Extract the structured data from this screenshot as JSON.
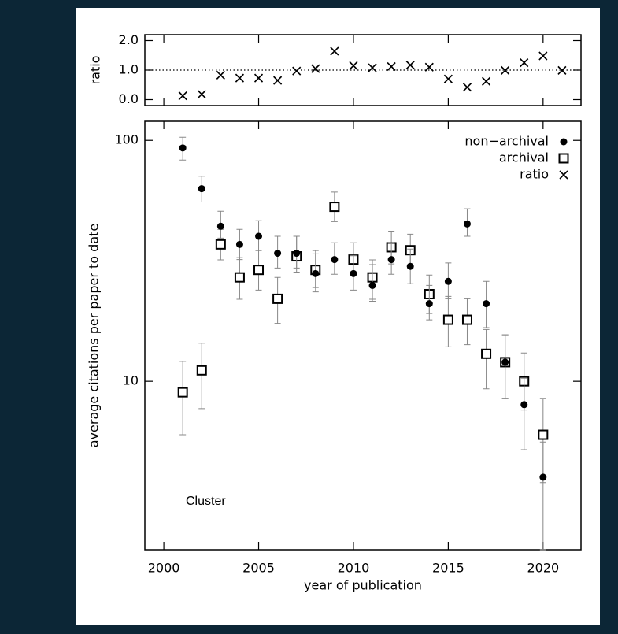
{
  "chart_data": [
    {
      "type": "scatter",
      "ylabel": "ratio",
      "x": [
        2001,
        2002,
        2003,
        2004,
        2005,
        2006,
        2007,
        2008,
        2009,
        2010,
        2011,
        2012,
        2013,
        2014,
        2015,
        2016,
        2017,
        2018,
        2019,
        2020,
        2021
      ],
      "series": [
        {
          "name": "ratio",
          "color": "#000000",
          "marker": "x",
          "values": [
            0.13,
            0.18,
            0.83,
            0.73,
            0.73,
            0.65,
            0.97,
            1.05,
            1.64,
            1.15,
            1.08,
            1.12,
            1.17,
            1.1,
            0.7,
            0.42,
            0.62,
            0.99,
            1.25,
            1.48,
            0.99
          ]
        }
      ],
      "xlim": [
        1999,
        2022
      ],
      "xticks": [
        2000,
        2005,
        2010,
        2015,
        2020
      ],
      "ylim": [
        -0.2,
        2.2
      ],
      "yticks": [
        {
          "value": 0,
          "label": "0.0"
        },
        {
          "value": 1,
          "label": "1.0"
        },
        {
          "value": 2,
          "label": "2.0"
        }
      ],
      "ref_line": 1
    },
    {
      "type": "scatter",
      "xlabel": "year of publication",
      "ylabel": "average citations per paper to date",
      "annotation": "Cluster",
      "x": [
        2001,
        2002,
        2003,
        2004,
        2005,
        2006,
        2007,
        2008,
        2009,
        2010,
        2011,
        2012,
        2013,
        2014,
        2015,
        2016,
        2017,
        2018,
        2019,
        2020,
        2021
      ],
      "series": [
        {
          "name": "archival",
          "color": "#000000",
          "marker": "square",
          "values": [
            9,
            11.1,
            37,
            27,
            29,
            22,
            33,
            29,
            53,
            32,
            27,
            36,
            35,
            23,
            18,
            18,
            13,
            12,
            10,
            6,
            null
          ],
          "lower": [
            6,
            7.7,
            31.9,
            21.9,
            23.9,
            17.4,
            28.4,
            23.5,
            46,
            27.4,
            21.9,
            30.7,
            29.5,
            19.1,
            13.9,
            14.2,
            9.3,
            8.5,
            7.6,
            3.8,
            null
          ],
          "upper": [
            12.1,
            14.4,
            42.7,
            32.6,
            34.9,
            27,
            40,
            34.9,
            61,
            37.6,
            31.9,
            42,
            40.8,
            27.6,
            22.5,
            22,
            16.4,
            15.6,
            13.1,
            8.5,
            null
          ]
        },
        {
          "name": "non−archival",
          "color": "#000000",
          "marker": "circle",
          "values": [
            93,
            63,
            44,
            37,
            40,
            34,
            34,
            28,
            32,
            28,
            25,
            32,
            30,
            21,
            26,
            45,
            21,
            12,
            8,
            4,
            null
          ],
          "lower": [
            82.8,
            55.5,
            39.3,
            32,
            34.9,
            29.5,
            29.5,
            24.5,
            27.8,
            23.9,
            21.5,
            27.8,
            25.4,
            18,
            22,
            40,
            16.7,
            8.5,
            5.2,
            2,
            null
          ],
          "upper": [
            103,
            71,
            50.8,
            42.7,
            46.4,
            40,
            40,
            33.8,
            37.6,
            33.3,
            30.5,
            37.6,
            35.4,
            25,
            31,
            52,
            26,
            15.6,
            10.3,
            5.6,
            null
          ]
        }
      ],
      "legend_order": [
        "non−archival",
        "archival",
        "ratio"
      ],
      "xlim": [
        1999,
        2022
      ],
      "xticks": [
        2000,
        2005,
        2010,
        2015,
        2020
      ],
      "ylim": [
        2,
        120
      ],
      "yticks": [
        10,
        100
      ],
      "log_y": true,
      "legend": "upper right"
    }
  ]
}
